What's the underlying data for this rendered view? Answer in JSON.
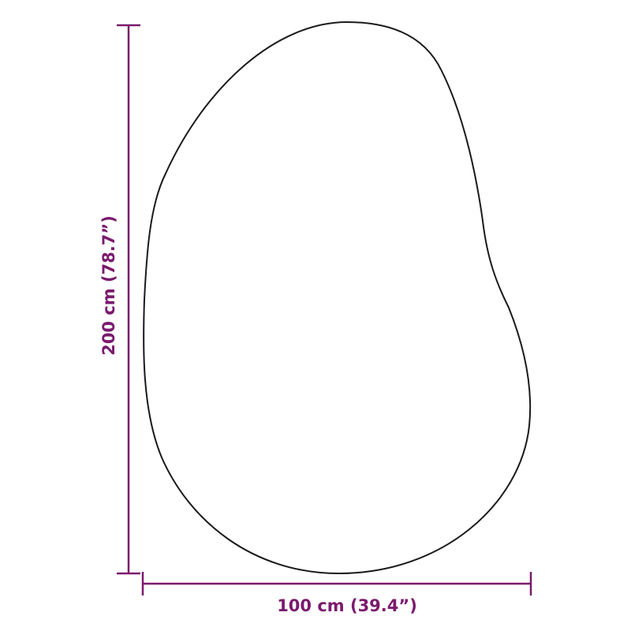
{
  "colors": {
    "dimension": "#7a1a6e",
    "outline": "#1a1a1a",
    "background": "#ffffff"
  },
  "dimensions": {
    "width_label": "100 cm (39.4”)",
    "height_label": "200 cm (78.7”)"
  }
}
